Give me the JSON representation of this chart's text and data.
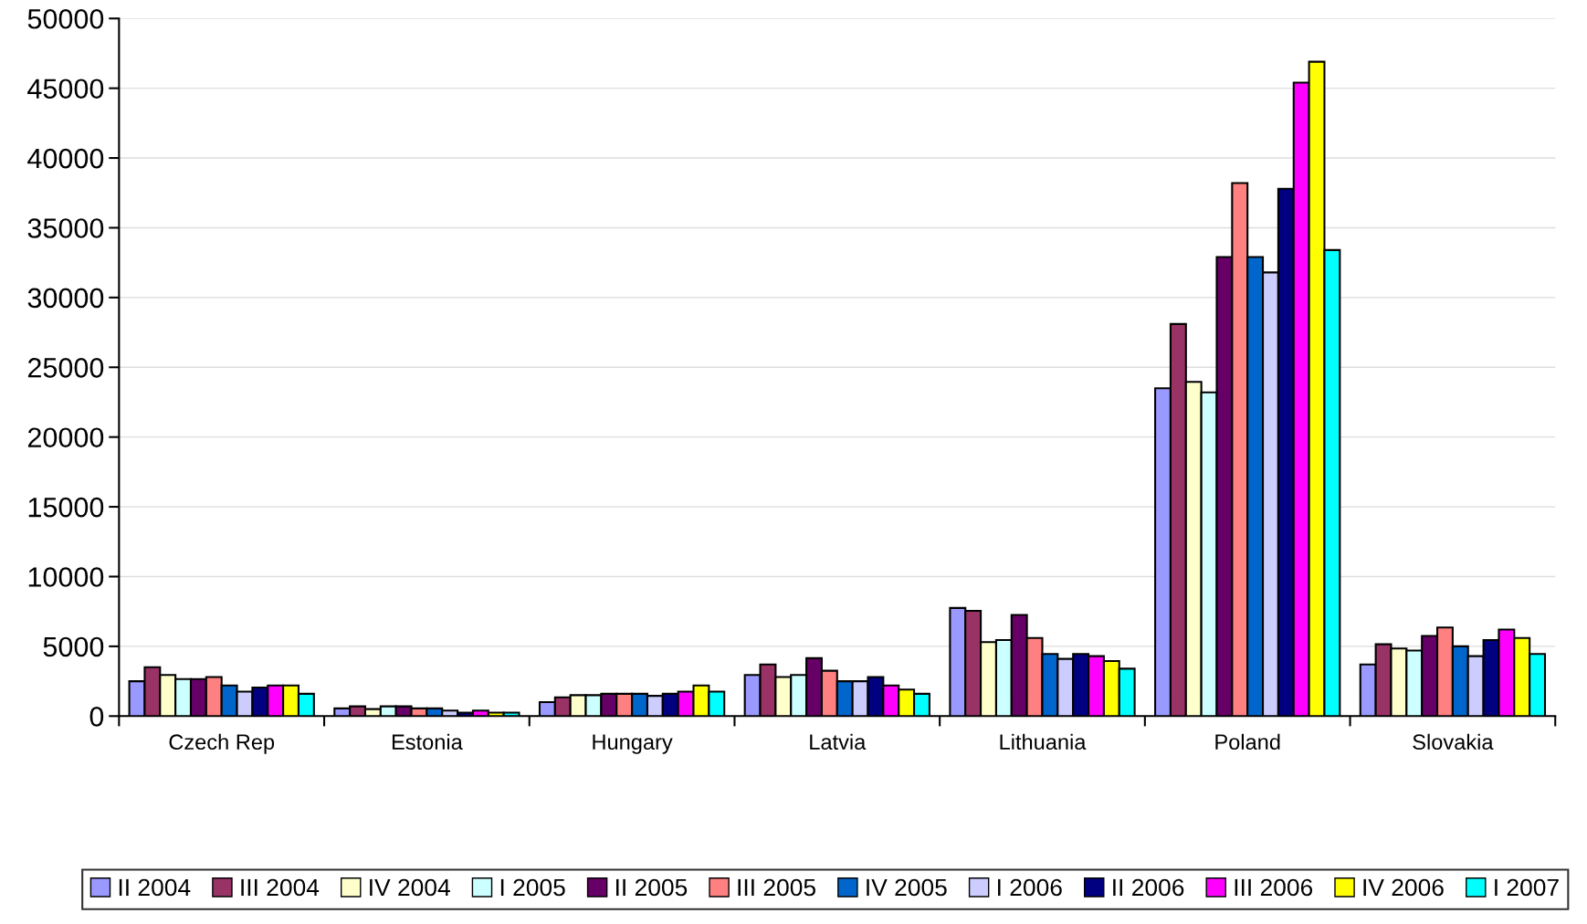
{
  "chart_data": {
    "type": "bar",
    "categories": [
      "Czech Rep",
      "Estonia",
      "Hungary",
      "Latvia",
      "Lithuania",
      "Poland",
      "Slovakia"
    ],
    "series": [
      {
        "name": "II 2004",
        "color": "#9999ff",
        "values": [
          2500,
          550,
          1000,
          2950,
          7750,
          23500,
          3700
        ]
      },
      {
        "name": "III 2004",
        "color": "#993366",
        "values": [
          3500,
          700,
          1350,
          3700,
          7550,
          28100,
          5150
        ]
      },
      {
        "name": "IV 2004",
        "color": "#ffffcc",
        "values": [
          2950,
          500,
          1500,
          2800,
          5300,
          23950,
          4850
        ]
      },
      {
        "name": "I 2005",
        "color": "#ccffff",
        "values": [
          2650,
          700,
          1500,
          2950,
          5450,
          23200,
          4700
        ]
      },
      {
        "name": "II 2005",
        "color": "#660066",
        "values": [
          2650,
          700,
          1600,
          4150,
          7250,
          32900,
          5750
        ]
      },
      {
        "name": "III 2005",
        "color": "#ff8080",
        "values": [
          2800,
          550,
          1600,
          3250,
          5600,
          38200,
          6350
        ]
      },
      {
        "name": "IV 2005",
        "color": "#0066cc",
        "values": [
          2200,
          550,
          1600,
          2500,
          4450,
          32900,
          5000
        ]
      },
      {
        "name": "I 2006",
        "color": "#ccccff",
        "values": [
          1750,
          400,
          1450,
          2500,
          4100,
          31800,
          4300
        ]
      },
      {
        "name": "II 2006",
        "color": "#000080",
        "values": [
          2050,
          250,
          1600,
          2800,
          4450,
          37800,
          5450
        ]
      },
      {
        "name": "III 2006",
        "color": "#ff00ff",
        "values": [
          2200,
          400,
          1750,
          2200,
          4300,
          45400,
          6200
        ]
      },
      {
        "name": "IV 2006",
        "color": "#ffff00",
        "values": [
          2200,
          250,
          2200,
          1900,
          3950,
          46900,
          5600
        ]
      },
      {
        "name": "I 2007",
        "color": "#00ffff",
        "values": [
          1600,
          250,
          1750,
          1600,
          3400,
          33400,
          4450
        ]
      }
    ],
    "ylim": [
      0,
      50000
    ],
    "yticks": [
      0,
      5000,
      10000,
      15000,
      20000,
      25000,
      30000,
      35000,
      40000,
      45000,
      50000
    ],
    "grid": "y",
    "legend": "bottom"
  }
}
